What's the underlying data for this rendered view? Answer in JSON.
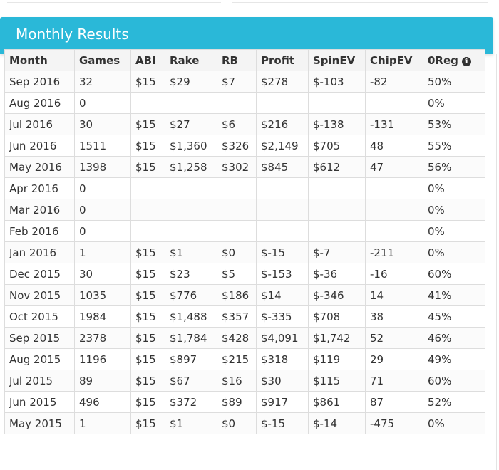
{
  "panel": {
    "title": "Monthly Results",
    "accent_color": "#2ab8d8"
  },
  "table": {
    "columns": [
      "Month",
      "Games",
      "ABI",
      "Rake",
      "RB",
      "Profit",
      "SpinEV",
      "ChipEV",
      "0Reg"
    ],
    "info_icon": "info-circle-icon",
    "rows": [
      [
        "Sep 2016",
        "32",
        "$15",
        "$29",
        "$7",
        "$278",
        "$-103",
        "-82",
        "50%"
      ],
      [
        "Aug 2016",
        "0",
        "",
        "",
        "",
        "",
        "",
        "",
        "0%"
      ],
      [
        "Jul 2016",
        "30",
        "$15",
        "$27",
        "$6",
        "$216",
        "$-138",
        "-131",
        "53%"
      ],
      [
        "Jun 2016",
        "1511",
        "$15",
        "$1,360",
        "$326",
        "$2,149",
        "$705",
        "48",
        "55%"
      ],
      [
        "May 2016",
        "1398",
        "$15",
        "$1,258",
        "$302",
        "$845",
        "$612",
        "47",
        "56%"
      ],
      [
        "Apr 2016",
        "0",
        "",
        "",
        "",
        "",
        "",
        "",
        "0%"
      ],
      [
        "Mar 2016",
        "0",
        "",
        "",
        "",
        "",
        "",
        "",
        "0%"
      ],
      [
        "Feb 2016",
        "0",
        "",
        "",
        "",
        "",
        "",
        "",
        "0%"
      ],
      [
        "Jan 2016",
        "1",
        "$15",
        "$1",
        "$0",
        "$-15",
        "$-7",
        "-211",
        "0%"
      ],
      [
        "Dec 2015",
        "30",
        "$15",
        "$23",
        "$5",
        "$-153",
        "$-36",
        "-16",
        "60%"
      ],
      [
        "Nov 2015",
        "1035",
        "$15",
        "$776",
        "$186",
        "$14",
        "$-346",
        "14",
        "41%"
      ],
      [
        "Oct 2015",
        "1984",
        "$15",
        "$1,488",
        "$357",
        "$-335",
        "$708",
        "38",
        "45%"
      ],
      [
        "Sep 2015",
        "2378",
        "$15",
        "$1,784",
        "$428",
        "$4,091",
        "$1,742",
        "52",
        "46%"
      ],
      [
        "Aug 2015",
        "1196",
        "$15",
        "$897",
        "$215",
        "$318",
        "$119",
        "29",
        "49%"
      ],
      [
        "Jul 2015",
        "89",
        "$15",
        "$67",
        "$16",
        "$30",
        "$115",
        "71",
        "60%"
      ],
      [
        "Jun 2015",
        "496",
        "$15",
        "$372",
        "$89",
        "$917",
        "$861",
        "87",
        "52%"
      ],
      [
        "May 2015",
        "1",
        "$15",
        "$1",
        "$0",
        "$-15",
        "$-14",
        "-475",
        "0%"
      ]
    ]
  }
}
